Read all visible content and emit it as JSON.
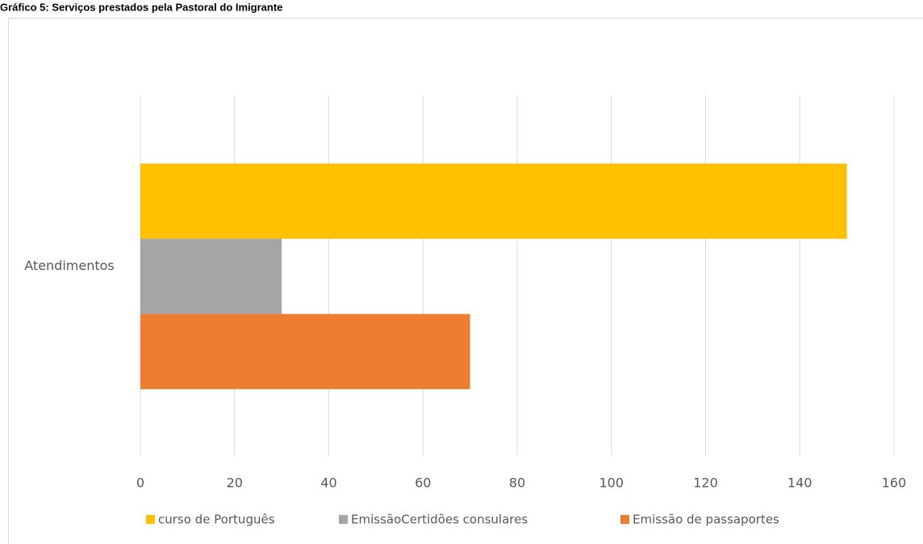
{
  "chart_data": {
    "type": "hbar",
    "title": "Gráfico 5: Serviços prestados pela Pastoral do Imigrante",
    "categories": [
      "Atendimentos"
    ],
    "series": [
      {
        "name": "curso de Português",
        "color": "#ffc000",
        "values": [
          150
        ]
      },
      {
        "name": "EmissãoCertidões consulares",
        "color": "#a5a5a5",
        "values": [
          30
        ]
      },
      {
        "name": "Emissão de passaportes",
        "color": "#ed7d31",
        "values": [
          70
        ]
      }
    ],
    "xlim": [
      0,
      160
    ],
    "xticks": [
      0,
      20,
      40,
      60,
      80,
      100,
      120,
      140,
      160
    ],
    "grid": true,
    "legend": "bottom"
  }
}
